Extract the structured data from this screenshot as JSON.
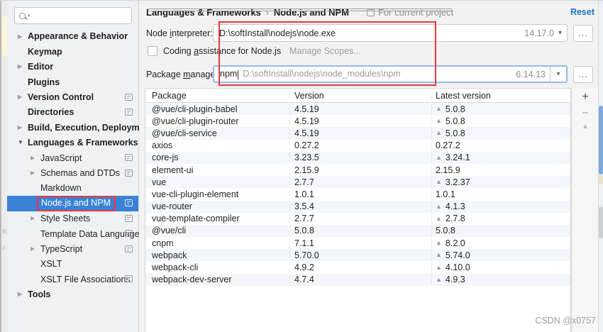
{
  "background": {
    "fragments": [
      "9(",
      "J"
    ]
  },
  "sidebar": {
    "search": {
      "placeholder": ""
    },
    "collapsed_glyph": "▶",
    "expanded_glyph": "▼",
    "items": [
      {
        "label": "Appearance & Behavior",
        "level": 0,
        "arrow": "collapsed",
        "badge": false,
        "selected": false,
        "annotated": false
      },
      {
        "label": "Keymap",
        "level": 0,
        "arrow": "none",
        "badge": false,
        "selected": false,
        "annotated": false
      },
      {
        "label": "Editor",
        "level": 0,
        "arrow": "collapsed",
        "badge": false,
        "selected": false,
        "annotated": false
      },
      {
        "label": "Plugins",
        "level": 0,
        "arrow": "none",
        "badge": false,
        "selected": false,
        "annotated": false
      },
      {
        "label": "Version Control",
        "level": 0,
        "arrow": "collapsed",
        "badge": true,
        "selected": false,
        "annotated": false
      },
      {
        "label": "Directories",
        "level": 0,
        "arrow": "none",
        "badge": true,
        "selected": false,
        "annotated": false
      },
      {
        "label": "Build, Execution, Deployment",
        "level": 0,
        "arrow": "collapsed",
        "badge": false,
        "selected": false,
        "annotated": false
      },
      {
        "label": "Languages & Frameworks",
        "level": 0,
        "arrow": "expanded",
        "badge": false,
        "selected": false,
        "annotated": false
      },
      {
        "label": "JavaScript",
        "level": 1,
        "arrow": "collapsed",
        "badge": true,
        "selected": false,
        "annotated": false
      },
      {
        "label": "Schemas and DTDs",
        "level": 1,
        "arrow": "collapsed",
        "badge": true,
        "selected": false,
        "annotated": false
      },
      {
        "label": "Markdown",
        "level": 1,
        "arrow": "none",
        "badge": false,
        "selected": false,
        "annotated": false
      },
      {
        "label": "Node.js and NPM",
        "level": 1,
        "arrow": "none",
        "badge": true,
        "selected": true,
        "annotated": true
      },
      {
        "label": "Style Sheets",
        "level": 1,
        "arrow": "collapsed",
        "badge": true,
        "selected": false,
        "annotated": false
      },
      {
        "label": "Template Data Languages",
        "level": 1,
        "arrow": "none",
        "badge": true,
        "selected": false,
        "annotated": false
      },
      {
        "label": "TypeScript",
        "level": 1,
        "arrow": "collapsed",
        "badge": true,
        "selected": false,
        "annotated": false
      },
      {
        "label": "XSLT",
        "level": 1,
        "arrow": "none",
        "badge": false,
        "selected": false,
        "annotated": false
      },
      {
        "label": "XSLT File Associations",
        "level": 1,
        "arrow": "none",
        "badge": true,
        "selected": false,
        "annotated": false
      },
      {
        "label": "Tools",
        "level": 0,
        "arrow": "collapsed",
        "badge": false,
        "selected": false,
        "annotated": false
      }
    ]
  },
  "header": {
    "breadcrumb": {
      "parent": "Languages & Frameworks",
      "separator": "›",
      "current": "Node.js and NPM"
    },
    "scope_note": "For current project",
    "reset": "Reset"
  },
  "form": {
    "node_interpreter": {
      "label": [
        "Node ",
        "i",
        "nterpreter:"
      ],
      "value": "D:\\softInstall\\nodejs\\node.exe",
      "version": "14.17.0",
      "dropdown_glyph": "▾",
      "browse": "..."
    },
    "coding_assistance": {
      "checked": false,
      "label": [
        "Coding ",
        "a",
        "ssistance for Node.js"
      ],
      "link": "Manage Scopes..."
    },
    "package_manager": {
      "label": [
        "Package ",
        "m",
        "anager:"
      ],
      "value": "npm",
      "path_hint": "D:\\softInstall\\nodejs\\node_modules\\npm",
      "version": "6.14.13",
      "dropdown_glyph": "▾",
      "browse": "..."
    }
  },
  "table": {
    "columns": [
      "Package",
      "Version",
      "Latest version"
    ],
    "up_arrow_glyph": "▲",
    "rows": [
      {
        "package": "@vue/cli-plugin-babel",
        "version": "4.5.19",
        "latest": "5.0.8",
        "upgrade": true
      },
      {
        "package": "@vue/cli-plugin-router",
        "version": "4.5.19",
        "latest": "5.0.8",
        "upgrade": true
      },
      {
        "package": "@vue/cli-service",
        "version": "4.5.19",
        "latest": "5.0.8",
        "upgrade": true
      },
      {
        "package": "axios",
        "version": "0.27.2",
        "latest": "0.27.2",
        "upgrade": false
      },
      {
        "package": "core-js",
        "version": "3.23.5",
        "latest": "3.24.1",
        "upgrade": true
      },
      {
        "package": "element-ui",
        "version": "2.15.9",
        "latest": "2.15.9",
        "upgrade": false
      },
      {
        "package": "vue",
        "version": "2.7.7",
        "latest": "3.2.37",
        "upgrade": true
      },
      {
        "package": "vue-cli-plugin-element",
        "version": "1.0.1",
        "latest": "1.0.1",
        "upgrade": false
      },
      {
        "package": "vue-router",
        "version": "3.5.4",
        "latest": "4.1.3",
        "upgrade": true
      },
      {
        "package": "vue-template-compiler",
        "version": "2.7.7",
        "latest": "2.7.8",
        "upgrade": true
      },
      {
        "package": "@vue/cli",
        "version": "5.0.8",
        "latest": "5.0.8",
        "upgrade": false
      },
      {
        "package": "cnpm",
        "version": "7.1.1",
        "latest": "8.2.0",
        "upgrade": true
      },
      {
        "package": "webpack",
        "version": "5.70.0",
        "latest": "5.74.0",
        "upgrade": true
      },
      {
        "package": "webpack-cli",
        "version": "4.9.2",
        "latest": "4.10.0",
        "upgrade": true
      },
      {
        "package": "webpack-dev-server",
        "version": "4.7.4",
        "latest": "4.9.3",
        "upgrade": true
      }
    ],
    "toolbar": {
      "add": "+",
      "remove": "−",
      "upgrade": "▲"
    }
  },
  "watermark": "CSDN @x0757",
  "colors": {
    "selection_blue": "#3b82d6",
    "annotation_red": "#e8383d",
    "link_blue": "#2173bc",
    "row_stripe": "#f3f6fa",
    "scroll_thumb_blue": "#7aa9de"
  }
}
